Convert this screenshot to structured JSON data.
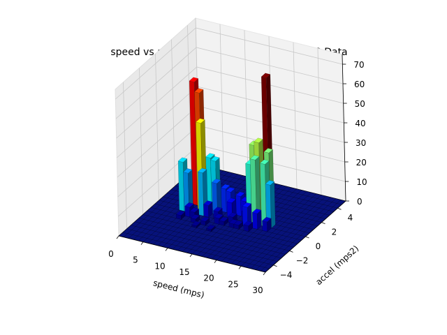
{
  "chart_data": {
    "type": "bar3d",
    "title": "speed vs accel for caltrans 1035198_1 d28 Data",
    "xlabel": "speed (mps)",
    "ylabel": "accel (mps2)",
    "zlabel": "",
    "xlim": [
      0,
      30
    ],
    "ylim": [
      -5,
      5
    ],
    "zlim": [
      0,
      75
    ],
    "xticks": [
      "0",
      "5",
      "10",
      "15",
      "20",
      "25",
      "30"
    ],
    "yticks": [
      "−4",
      "−2",
      "0",
      "2",
      "4"
    ],
    "zticks": [
      "0",
      "10",
      "20",
      "30",
      "40",
      "50",
      "60",
      "70"
    ],
    "colormap": "jet",
    "grid": true,
    "bar_width_speed": 1,
    "bar_depth_accel": 0.5,
    "bars": [
      {
        "x": 6,
        "y": 0.5,
        "z": 63
      },
      {
        "x": 7,
        "y": 0.5,
        "z": 58
      },
      {
        "x": 8,
        "y": 0,
        "z": 45
      },
      {
        "x": 5,
        "y": -0.5,
        "z": 25
      },
      {
        "x": 6,
        "y": -0.5,
        "z": 20
      },
      {
        "x": 9,
        "y": 0.5,
        "z": 26
      },
      {
        "x": 10,
        "y": 0.5,
        "z": 25
      },
      {
        "x": 9,
        "y": -0.5,
        "z": 22
      },
      {
        "x": 11,
        "y": 0,
        "z": 16
      },
      {
        "x": 12,
        "y": 0.5,
        "z": 12
      },
      {
        "x": 13,
        "y": 0.5,
        "z": 11
      },
      {
        "x": 14,
        "y": 0,
        "z": 8
      },
      {
        "x": 15,
        "y": 0.5,
        "z": 10
      },
      {
        "x": 16,
        "y": 0.5,
        "z": 8
      },
      {
        "x": 10,
        "y": -0.5,
        "z": 6
      },
      {
        "x": 7,
        "y": -1,
        "z": 5
      },
      {
        "x": 12,
        "y": -0.5,
        "z": 4
      },
      {
        "x": 8,
        "y": -1,
        "z": 3
      },
      {
        "x": 13,
        "y": -1,
        "z": 3
      },
      {
        "x": 6,
        "y": -1.5,
        "z": 2
      },
      {
        "x": 9,
        "y": -1.5,
        "z": 2
      },
      {
        "x": 11,
        "y": -1.5,
        "z": 2
      },
      {
        "x": 14,
        "y": -1,
        "z": 2
      },
      {
        "x": 15,
        "y": -0.5,
        "z": 3
      },
      {
        "x": 16,
        "y": -1,
        "z": 2
      },
      {
        "x": 17,
        "y": 0,
        "z": 5
      },
      {
        "x": 10,
        "y": -2,
        "z": 1
      },
      {
        "x": 13,
        "y": -2,
        "z": 1
      },
      {
        "x": 18,
        "y": 0.5,
        "z": 38
      },
      {
        "x": 19,
        "y": 0.5,
        "z": 40
      },
      {
        "x": 20,
        "y": 1,
        "z": 72
      },
      {
        "x": 21,
        "y": 0.5,
        "z": 36
      },
      {
        "x": 18,
        "y": 0,
        "z": 30
      },
      {
        "x": 19,
        "y": 0,
        "z": 33
      },
      {
        "x": 21,
        "y": 0,
        "z": 32
      },
      {
        "x": 22,
        "y": 0,
        "z": 22
      },
      {
        "x": 18,
        "y": -0.5,
        "z": 10
      },
      {
        "x": 20,
        "y": -0.5,
        "z": 8
      },
      {
        "x": 22,
        "y": -0.5,
        "z": 5
      },
      {
        "x": 17,
        "y": -1,
        "z": 2
      },
      {
        "x": 19,
        "y": -1,
        "z": 3
      }
    ]
  }
}
